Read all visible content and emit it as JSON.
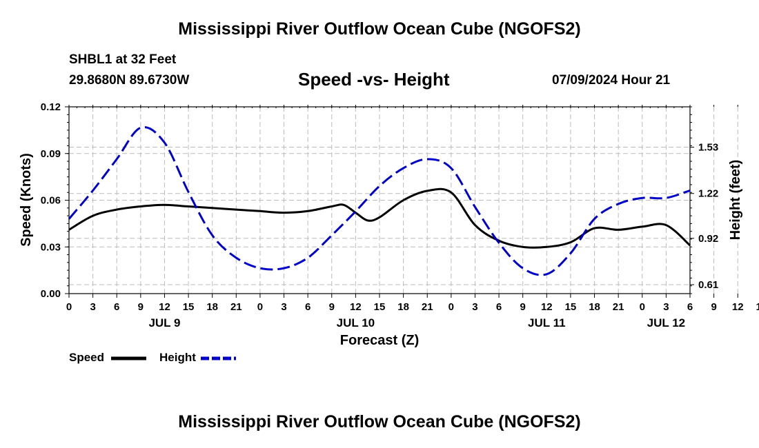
{
  "header": {
    "title": "Mississippi River Outflow Ocean Cube (NGOFS2)",
    "station": "SHBL1 at 32 Feet",
    "coords": "29.8680N  89.6730W",
    "subtitle": "Speed -vs- Height",
    "datetime": "07/09/2024 Hour 21"
  },
  "footer": {
    "title": "Mississippi River Outflow Ocean Cube (NGOFS2)"
  },
  "legend": {
    "speed": "Speed",
    "height": "Height"
  },
  "colors": {
    "speed": "#000000",
    "height": "#0000cc",
    "grid": "#bbbbbb"
  },
  "chart_data": {
    "type": "line",
    "xlabel": "Forecast (Z)",
    "ylabel_left": "Speed (Knots)",
    "ylabel_right": "Height (feet)",
    "x_hours_range": [
      0,
      78
    ],
    "x_tick_labels": [
      "0",
      "3",
      "6",
      "9",
      "12",
      "15",
      "18",
      "21",
      "0",
      "3",
      "6",
      "9",
      "12",
      "15",
      "18",
      "21",
      "0",
      "3",
      "6",
      "9",
      "12",
      "15",
      "18",
      "21",
      "0",
      "3",
      "6",
      "9",
      "12",
      "15",
      "18",
      "21",
      "0",
      "3",
      "6"
    ],
    "day_labels": [
      {
        "label": "JUL 9",
        "hour": 12
      },
      {
        "label": "JUL 10",
        "hour": 36
      },
      {
        "label": "JUL 11",
        "hour": 60
      },
      {
        "label": "JUL 12",
        "hour": 75
      }
    ],
    "ylim_left": [
      0,
      0.12
    ],
    "y_ticks_left": [
      "0.00",
      "0.03",
      "0.06",
      "0.09",
      "0.12"
    ],
    "ylim_right": [
      0.55,
      1.8
    ],
    "y_ticks_right": [
      {
        "label": "0.61",
        "value": 0.61
      },
      {
        "label": "0.92",
        "value": 0.92
      },
      {
        "label": "1.22",
        "value": 1.22
      },
      {
        "label": "1.53",
        "value": 1.53
      }
    ],
    "grid": true,
    "series": [
      {
        "name": "Speed",
        "axis": "left",
        "x": [
          0,
          3,
          6,
          9,
          12,
          15,
          18,
          21,
          24,
          27,
          30,
          33,
          34.5,
          36,
          37.5,
          39,
          42,
          45,
          48,
          51,
          54,
          57,
          60,
          63,
          66,
          69,
          72,
          75,
          78
        ],
        "values": [
          0.041,
          0.05,
          0.054,
          0.056,
          0.057,
          0.056,
          0.055,
          0.054,
          0.053,
          0.052,
          0.053,
          0.056,
          0.057,
          0.052,
          0.047,
          0.049,
          0.06,
          0.066,
          0.065,
          0.044,
          0.034,
          0.03,
          0.03,
          0.033,
          0.042,
          0.041,
          0.043,
          0.044,
          0.031
        ]
      },
      {
        "name": "Height",
        "axis": "right",
        "x": [
          0,
          3,
          6,
          9,
          12,
          15,
          18,
          21,
          24,
          27,
          30,
          33,
          36,
          39,
          42,
          45,
          48,
          51,
          54,
          57,
          60,
          63,
          66,
          69,
          72,
          75,
          78
        ],
        "values": [
          1.05,
          1.24,
          1.45,
          1.66,
          1.56,
          1.23,
          0.94,
          0.79,
          0.72,
          0.72,
          0.79,
          0.94,
          1.1,
          1.27,
          1.39,
          1.45,
          1.39,
          1.13,
          0.89,
          0.72,
          0.68,
          0.82,
          1.05,
          1.15,
          1.19,
          1.19,
          1.24
        ]
      }
    ]
  }
}
